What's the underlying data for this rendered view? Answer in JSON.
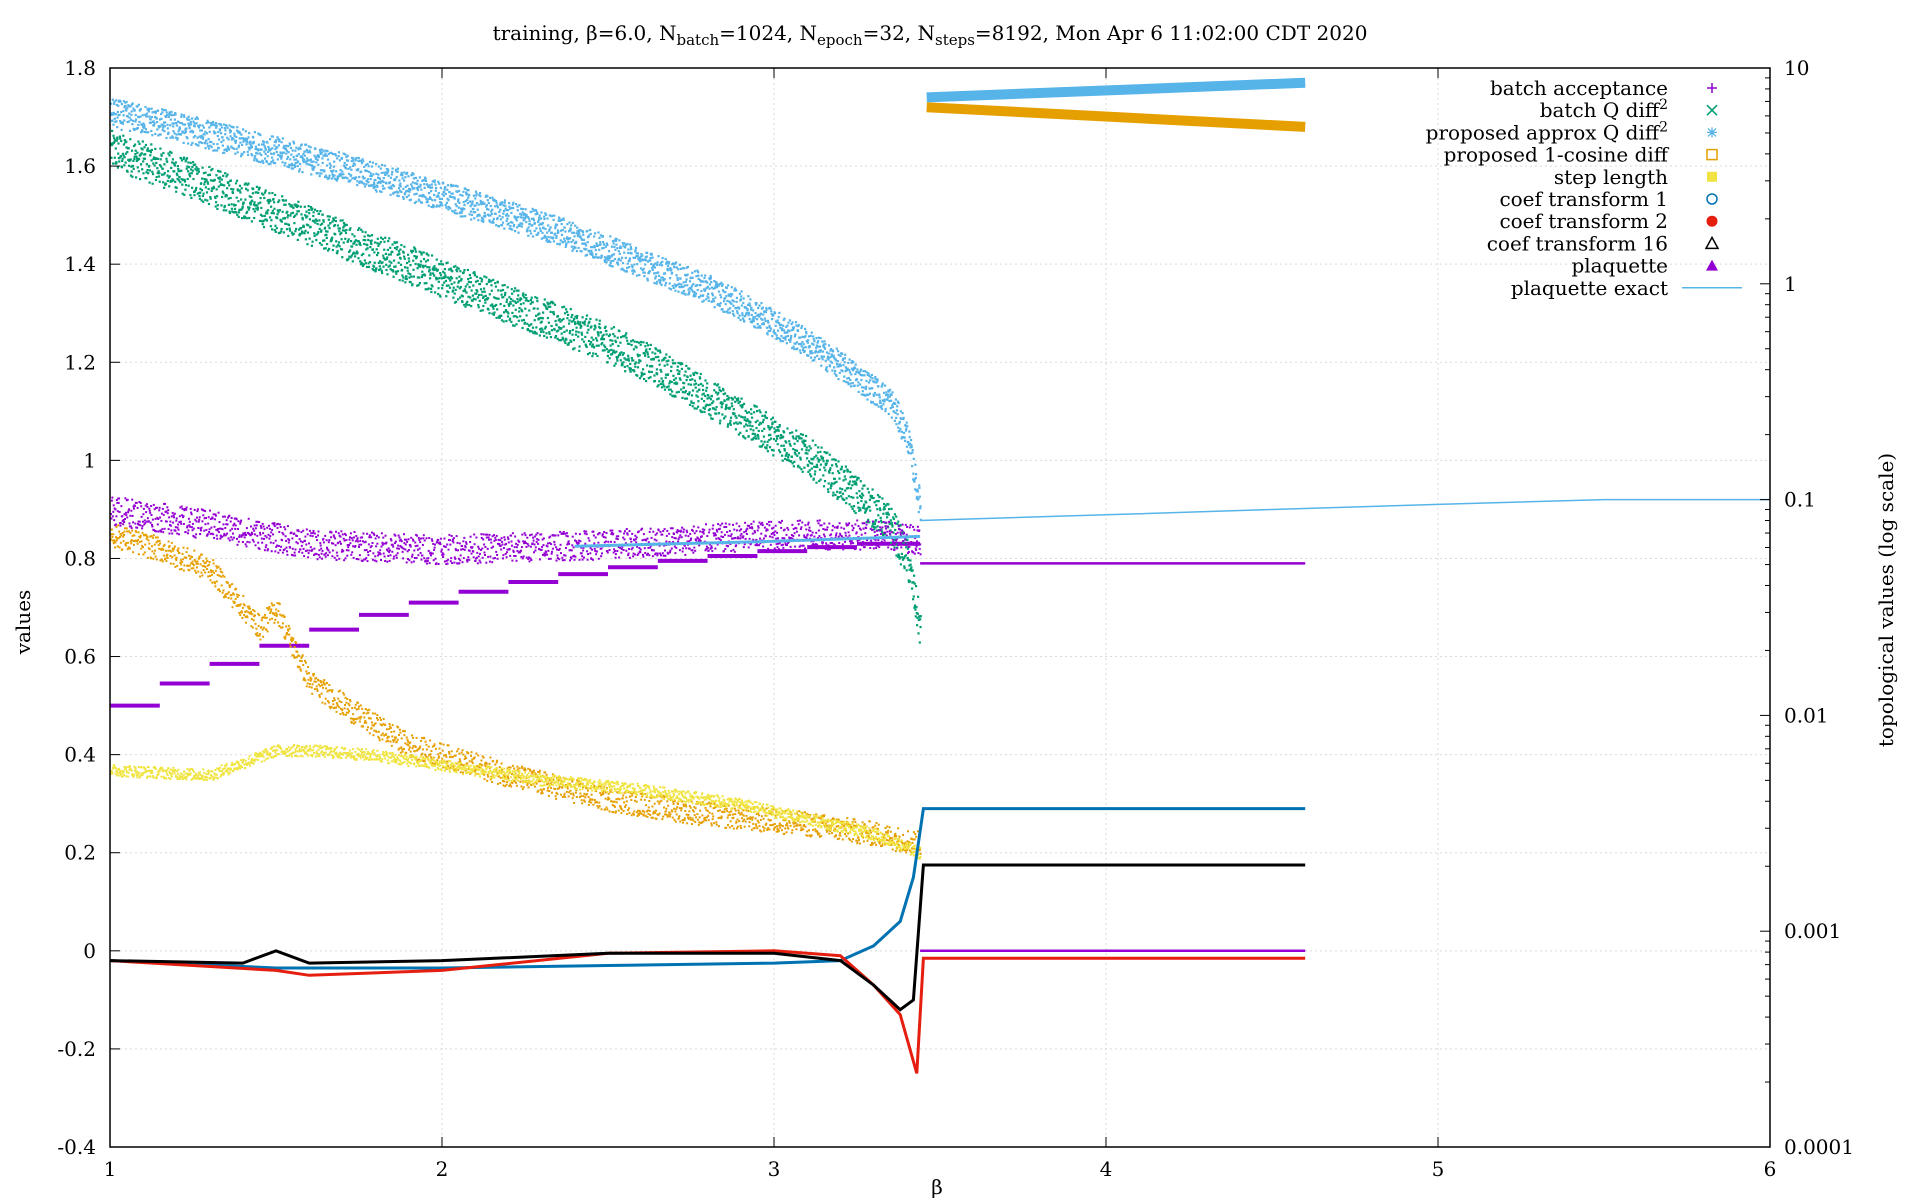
{
  "chart_data": {
    "type": "scatter",
    "title_parts": {
      "prefix": "training, β=6.0, N",
      "sub1": "batch",
      "mid1": "=1024, N",
      "sub2": "epoch",
      "mid2": "=32, N",
      "sub3": "steps",
      "suffix": "=8192, Mon Apr  6 11:02:00 CDT 2020"
    },
    "xlabel": "β",
    "ylabel": "values",
    "y2label": "topological values (log scale)",
    "xlim": [
      1,
      6
    ],
    "ylim": [
      -0.4,
      1.8
    ],
    "y2lim": [
      0.0001,
      10
    ],
    "y2scale": "log",
    "grid": true,
    "legend_position": "top-right",
    "x_ticks": [
      "1",
      "2",
      "3",
      "4",
      "5",
      "6"
    ],
    "y_ticks": [
      "-0.4",
      "-0.2",
      "0",
      "0.2",
      "0.4",
      "0.6",
      "0.8",
      "1",
      "1.2",
      "1.4",
      "1.6",
      "1.8"
    ],
    "y2_ticks": [
      "0.0001",
      "0.001",
      "0.01",
      "0.1",
      "1",
      "10"
    ],
    "legend": [
      {
        "label": "batch acceptance",
        "sup": "",
        "symbol": "plus",
        "color": "#9400d3"
      },
      {
        "label": "batch Q diff",
        "sup": "2",
        "symbol": "cross",
        "color": "#009e73"
      },
      {
        "label": "proposed approx Q diff",
        "sup": "2",
        "symbol": "star",
        "color": "#56b4e9"
      },
      {
        "label": "proposed 1-cosine diff",
        "sup": "",
        "symbol": "square-open",
        "color": "#e69f00"
      },
      {
        "label": "step length",
        "sup": "",
        "symbol": "square-filled",
        "color": "#f0e442"
      },
      {
        "label": "coef transform 1",
        "sup": "",
        "symbol": "circle-open",
        "color": "#0072b2"
      },
      {
        "label": "coef transform 2",
        "sup": "",
        "symbol": "circle-filled",
        "color": "#e51e10"
      },
      {
        "label": "coef transform 16",
        "sup": "",
        "symbol": "triangle-open",
        "color": "#000000"
      },
      {
        "label": "plaquette",
        "sup": "",
        "symbol": "triangle-filled",
        "color": "#9400d3"
      },
      {
        "label": "plaquette exact",
        "sup": "",
        "symbol": "line",
        "color": "#56b4e9"
      }
    ],
    "series": [
      {
        "name": "batch acceptance",
        "axis": "y",
        "kind": "steps",
        "color": "#9400d3",
        "x": [
          1.0,
          1.15,
          1.3,
          1.45,
          1.6,
          1.75,
          1.9,
          2.05,
          2.2,
          2.35,
          2.5,
          2.65,
          2.8,
          2.95,
          3.1,
          3.25,
          3.44
        ],
        "y": [
          0.5,
          0.545,
          0.585,
          0.622,
          0.655,
          0.685,
          0.71,
          0.732,
          0.752,
          0.768,
          0.782,
          0.795,
          0.805,
          0.815,
          0.823,
          0.83,
          0.835
        ],
        "tail_x": [
          3.44,
          4.6
        ],
        "tail_y": [
          0.0,
          0.0
        ]
      },
      {
        "name": "batch Q diff²",
        "axis": "y",
        "kind": "band",
        "color": "#009e73",
        "x": [
          1.0,
          1.15,
          1.3,
          1.45,
          1.6,
          1.75,
          1.9,
          2.05,
          2.2,
          2.35,
          2.5,
          2.65,
          2.8,
          2.95,
          3.1,
          3.25,
          3.35,
          3.4,
          3.44
        ],
        "y": [
          1.635,
          1.6,
          1.56,
          1.52,
          1.48,
          1.44,
          1.4,
          1.36,
          1.32,
          1.28,
          1.24,
          1.19,
          1.13,
          1.07,
          1.01,
          0.93,
          0.87,
          0.8,
          0.65
        ],
        "spread": 0.04
      },
      {
        "name": "proposed approx Q diff²",
        "axis": "y",
        "kind": "band",
        "color": "#56b4e9",
        "x": [
          1.0,
          1.15,
          1.3,
          1.45,
          1.6,
          1.75,
          1.9,
          2.05,
          2.2,
          2.35,
          2.5,
          2.65,
          2.8,
          2.95,
          3.1,
          3.25,
          3.35,
          3.4,
          3.44
        ],
        "y": [
          1.71,
          1.69,
          1.665,
          1.64,
          1.615,
          1.59,
          1.56,
          1.53,
          1.5,
          1.47,
          1.43,
          1.39,
          1.35,
          1.3,
          1.24,
          1.17,
          1.12,
          1.05,
          0.9
        ],
        "spread": 0.03,
        "tail_x": [
          3.46,
          4.6
        ],
        "tail_y": [
          1.74,
          1.77
        ]
      },
      {
        "name": "proposed 1-cosine diff",
        "axis": "y",
        "kind": "noisy",
        "color": "#e69f00",
        "x": [
          1.0,
          1.15,
          1.3,
          1.45,
          1.5,
          1.55,
          1.6,
          1.75,
          1.9,
          2.05,
          2.2,
          2.5,
          2.8,
          3.1,
          3.3,
          3.44
        ],
        "y": [
          0.85,
          0.82,
          0.78,
          0.66,
          0.7,
          0.62,
          0.55,
          0.48,
          0.42,
          0.39,
          0.36,
          0.31,
          0.28,
          0.26,
          0.24,
          0.22
        ],
        "spread": 0.025,
        "tail_x": [
          3.46,
          4.6
        ],
        "tail_y": [
          1.72,
          1.68
        ]
      },
      {
        "name": "step length",
        "axis": "y",
        "kind": "noisy",
        "color": "#f0e442",
        "x": [
          1.0,
          1.3,
          1.5,
          1.6,
          1.8,
          2.0,
          2.3,
          2.6,
          2.9,
          3.1,
          3.3,
          3.44
        ],
        "y": [
          0.37,
          0.36,
          0.41,
          0.41,
          0.4,
          0.38,
          0.35,
          0.33,
          0.3,
          0.27,
          0.24,
          0.2
        ],
        "spread": 0.012
      },
      {
        "name": "coef transform 1",
        "axis": "y",
        "kind": "line",
        "color": "#0072b2",
        "x": [
          1.0,
          1.5,
          2.0,
          2.5,
          3.0,
          3.2,
          3.3,
          3.38,
          3.42,
          3.45,
          4.6
        ],
        "y": [
          -0.02,
          -0.035,
          -0.035,
          -0.03,
          -0.025,
          -0.02,
          0.01,
          0.06,
          0.15,
          0.29,
          0.29
        ]
      },
      {
        "name": "coef transform 2",
        "axis": "y",
        "kind": "line",
        "color": "#e51e10",
        "x": [
          1.0,
          1.5,
          1.6,
          2.0,
          2.5,
          3.0,
          3.2,
          3.3,
          3.38,
          3.43,
          3.45,
          4.6
        ],
        "y": [
          -0.02,
          -0.04,
          -0.05,
          -0.04,
          -0.005,
          0.0,
          -0.01,
          -0.07,
          -0.13,
          -0.25,
          -0.015,
          -0.015
        ]
      },
      {
        "name": "coef transform 16",
        "axis": "y",
        "kind": "line",
        "color": "#000000",
        "x": [
          1.0,
          1.4,
          1.5,
          1.6,
          2.0,
          2.5,
          3.0,
          3.2,
          3.3,
          3.38,
          3.42,
          3.45,
          4.6
        ],
        "y": [
          -0.02,
          -0.025,
          0.0,
          -0.025,
          -0.02,
          -0.005,
          -0.005,
          -0.02,
          -0.07,
          -0.12,
          -0.1,
          0.175,
          0.175
        ]
      },
      {
        "name": "plaquette",
        "axis": "y",
        "kind": "noisy",
        "color": "#9400d3",
        "x": [
          1.0,
          1.3,
          1.6,
          2.0,
          2.5,
          3.0,
          3.3,
          3.44
        ],
        "y": [
          0.9,
          0.87,
          0.83,
          0.82,
          0.83,
          0.85,
          0.85,
          0.84
        ],
        "spread": 0.03,
        "tail_x": [
          3.44,
          4.6
        ],
        "tail_y": [
          0.79,
          0.79
        ]
      },
      {
        "name": "plaquette exact",
        "axis": "y2",
        "kind": "stepline",
        "color": "#56b4e9",
        "x": [
          3.44,
          4.0,
          4.5,
          5.0,
          5.5,
          6.0
        ],
        "y": [
          0.08,
          0.085,
          0.09,
          0.095,
          0.1,
          0.1
        ]
      },
      {
        "name": "plaquette exact (left)",
        "axis": "y",
        "kind": "line",
        "color": "#56b4e9",
        "x": [
          2.4,
          3.0,
          3.44
        ],
        "y": [
          0.825,
          0.835,
          0.845
        ]
      }
    ]
  }
}
